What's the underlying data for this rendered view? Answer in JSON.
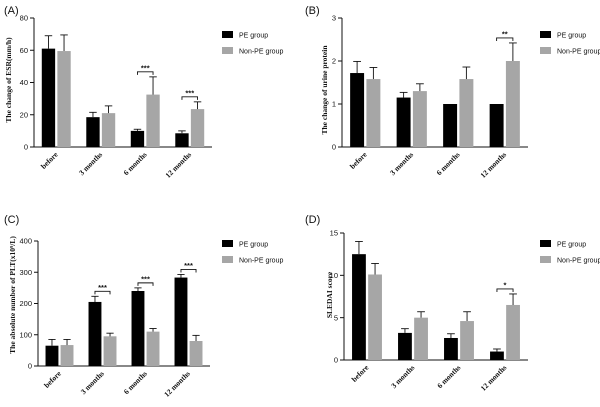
{
  "legend": {
    "pe": "PE group",
    "non_pe": "Non-PE group"
  },
  "colors": {
    "pe": "#000000",
    "non_pe": "#a6a6a6"
  },
  "chart_data": [
    {
      "panel": "(A)",
      "type": "bar",
      "ylabel": "The change of ESR(mm/h)",
      "ylim": [
        0,
        80
      ],
      "yticks": [
        0,
        20,
        40,
        60,
        80
      ],
      "categories": [
        "before",
        "3 months",
        "6 months",
        "12 months"
      ],
      "series": [
        {
          "name": "PE group",
          "values": [
            61,
            18.5,
            10,
            8.5
          ],
          "errors": [
            8,
            3,
            1,
            1.5
          ]
        },
        {
          "name": "Non-PE group",
          "values": [
            59.5,
            21,
            32.5,
            23.5
          ],
          "errors": [
            10,
            4.5,
            11,
            4.5
          ]
        }
      ],
      "significance": [
        {
          "category": 2,
          "label": "***"
        },
        {
          "category": 3,
          "label": "***"
        }
      ]
    },
    {
      "panel": "(B)",
      "type": "bar",
      "ylabel": "The change of urine protein",
      "ylim": [
        0,
        3
      ],
      "yticks": [
        0,
        1,
        2,
        3
      ],
      "categories": [
        "before",
        "3 months",
        "6 months",
        "12 months"
      ],
      "series": [
        {
          "name": "PE group",
          "values": [
            1.72,
            1.15,
            1.0,
            1.0
          ],
          "errors": [
            0.27,
            0.12,
            0,
            0
          ]
        },
        {
          "name": "Non-PE group",
          "values": [
            1.58,
            1.3,
            1.58,
            2.0
          ],
          "errors": [
            0.27,
            0.17,
            0.28,
            0.42
          ]
        }
      ],
      "significance": [
        {
          "category": 3,
          "label": "**"
        }
      ]
    },
    {
      "panel": "(C)",
      "type": "bar",
      "ylabel": "The absolute   number of PLT(x10⁹/L)",
      "ylim": [
        0,
        400
      ],
      "yticks": [
        0,
        100,
        200,
        300,
        400
      ],
      "categories": [
        "before",
        "3 months",
        "6 months",
        "12 months"
      ],
      "series": [
        {
          "name": "PE group",
          "values": [
            65,
            205,
            240,
            283
          ],
          "errors": [
            20,
            18,
            10,
            10
          ]
        },
        {
          "name": "Non-PE group",
          "values": [
            67,
            95,
            110,
            80
          ],
          "errors": [
            18,
            10,
            10,
            18
          ]
        }
      ],
      "significance": [
        {
          "category": 1,
          "label": "***"
        },
        {
          "category": 2,
          "label": "***"
        },
        {
          "category": 3,
          "label": "***"
        }
      ]
    },
    {
      "panel": "(D)",
      "type": "bar",
      "ylabel": "SLEDAI score",
      "ylim": [
        0,
        15
      ],
      "yticks": [
        0,
        5,
        10,
        15
      ],
      "categories": [
        "before",
        "3 months",
        "6 months",
        "12 months"
      ],
      "series": [
        {
          "name": "PE group",
          "values": [
            12.5,
            3.2,
            2.6,
            1.0
          ],
          "errors": [
            1.5,
            0.5,
            0.5,
            0.3
          ]
        },
        {
          "name": "Non-PE group",
          "values": [
            10.1,
            5.0,
            4.6,
            6.5
          ],
          "errors": [
            1.3,
            0.7,
            1.1,
            1.3
          ]
        }
      ],
      "significance": [
        {
          "category": 3,
          "label": "*"
        }
      ]
    }
  ]
}
